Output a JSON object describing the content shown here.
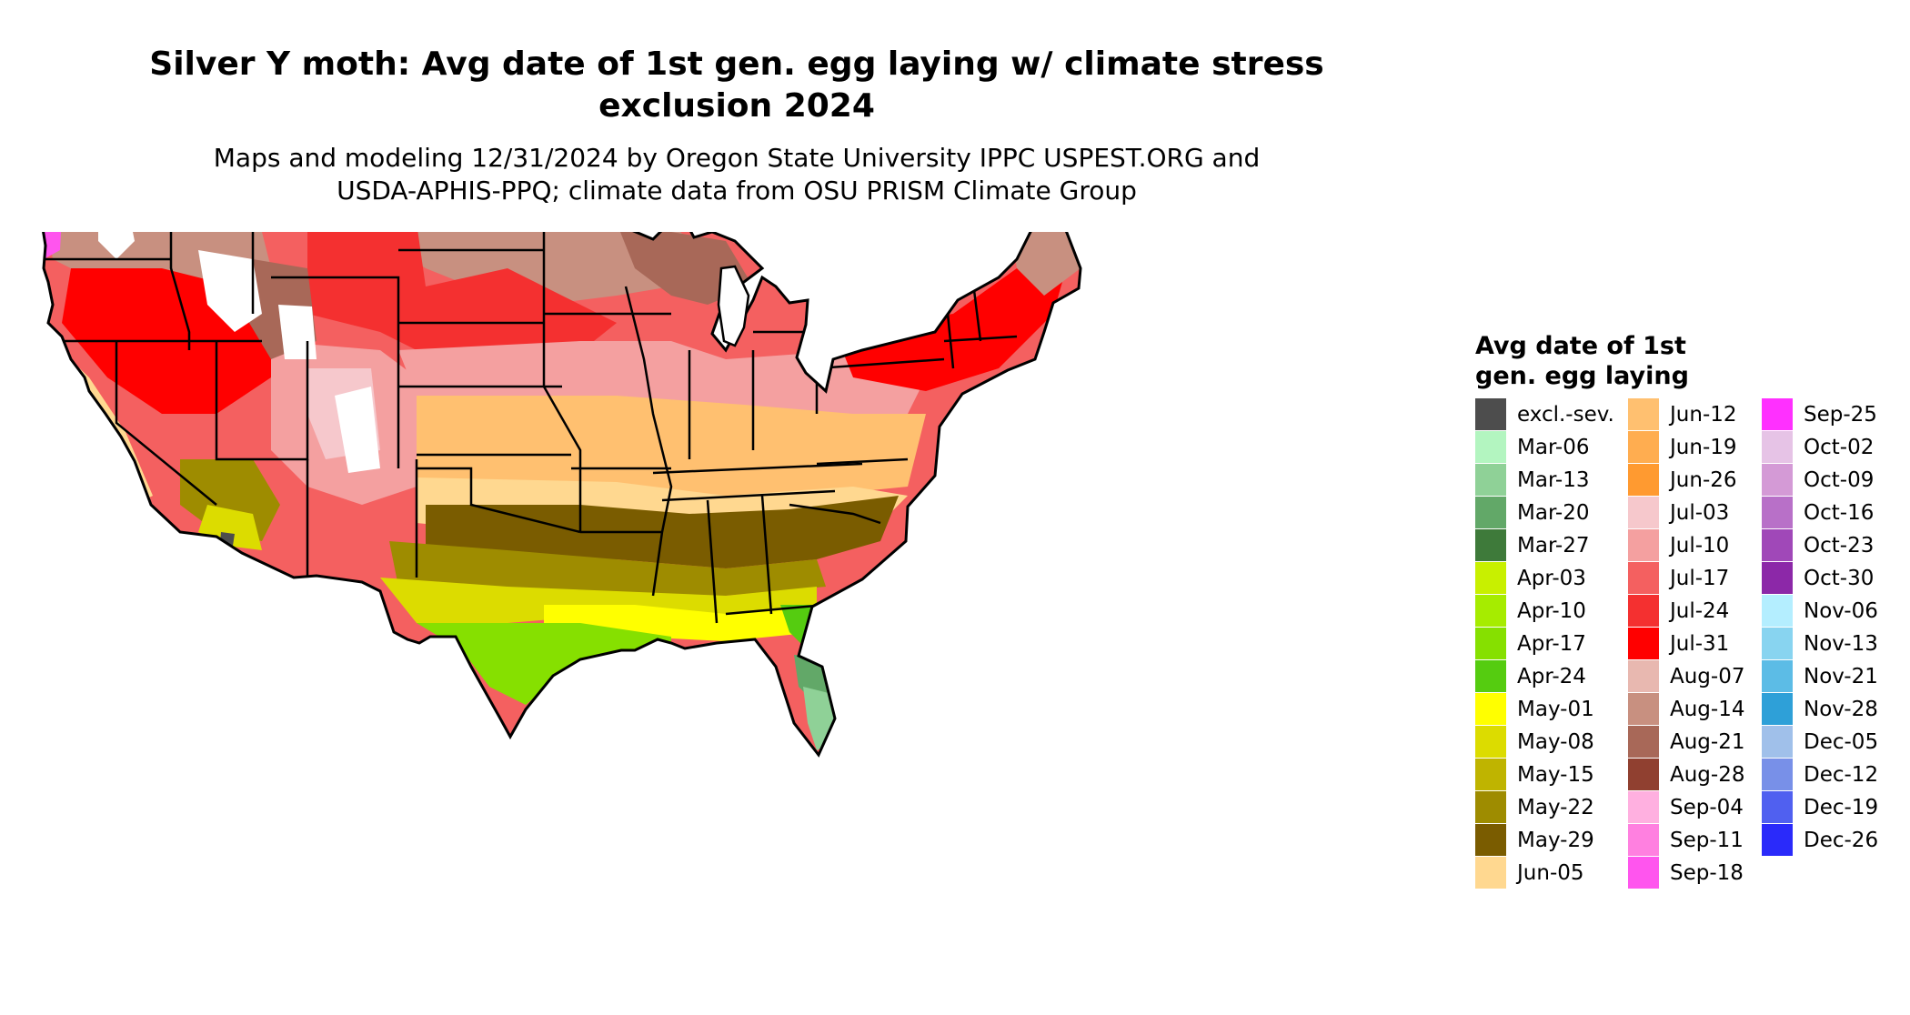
{
  "header": {
    "title_line1": "Silver Y moth: Avg date of 1st gen. egg laying w/ climate stress",
    "title_line2": "exclusion 2024",
    "subtitle_line1": "Maps and modeling 12/31/2024 by Oregon State University IPPC USPEST.ORG and",
    "subtitle_line2": "USDA-APHIS-PPQ; climate data from OSU PRISM Climate Group"
  },
  "legend": {
    "title_line1": "Avg date of 1st",
    "title_line2": "gen. egg laying",
    "columns": [
      [
        {
          "label": "excl.-sev.",
          "color": "#4d4d4d"
        },
        {
          "label": "Mar-06",
          "color": "#b3f5c0"
        },
        {
          "label": "Mar-13",
          "color": "#8fd197"
        },
        {
          "label": "Mar-20",
          "color": "#62a868"
        },
        {
          "label": "Mar-27",
          "color": "#3e7a3a"
        },
        {
          "label": "Apr-03",
          "color": "#c8f000"
        },
        {
          "label": "Apr-10",
          "color": "#a6ec00"
        },
        {
          "label": "Apr-17",
          "color": "#86e000"
        },
        {
          "label": "Apr-24",
          "color": "#55cc10"
        },
        {
          "label": "May-01",
          "color": "#ffff00"
        },
        {
          "label": "May-08",
          "color": "#dcdc00"
        },
        {
          "label": "May-15",
          "color": "#bfb400"
        },
        {
          "label": "May-22",
          "color": "#9e8c00"
        },
        {
          "label": "May-29",
          "color": "#7a5c00"
        },
        {
          "label": "Jun-05",
          "color": "#ffd890"
        }
      ],
      [
        {
          "label": "Jun-12",
          "color": "#ffc070"
        },
        {
          "label": "Jun-19",
          "color": "#ffad50"
        },
        {
          "label": "Jun-26",
          "color": "#ff9a30"
        },
        {
          "label": "Jul-03",
          "color": "#f6c8cc"
        },
        {
          "label": "Jul-10",
          "color": "#f4a0a0"
        },
        {
          "label": "Jul-17",
          "color": "#f46060"
        },
        {
          "label": "Jul-24",
          "color": "#f43030"
        },
        {
          "label": "Jul-31",
          "color": "#ff0000"
        },
        {
          "label": "Aug-07",
          "color": "#e8b8b0"
        },
        {
          "label": "Aug-14",
          "color": "#c89080"
        },
        {
          "label": "Aug-21",
          "color": "#a86858"
        },
        {
          "label": "Aug-28",
          "color": "#904030"
        },
        {
          "label": "Sep-04",
          "color": "#ffb0e0"
        },
        {
          "label": "Sep-11",
          "color": "#ff80e0"
        },
        {
          "label": "Sep-18",
          "color": "#ff55ee"
        }
      ],
      [
        {
          "label": "Sep-25",
          "color": "#ff30ff"
        },
        {
          "label": "Oct-02",
          "color": "#e6c3e6"
        },
        {
          "label": "Oct-09",
          "color": "#d49ad6"
        },
        {
          "label": "Oct-16",
          "color": "#b870c8"
        },
        {
          "label": "Oct-23",
          "color": "#a048b8"
        },
        {
          "label": "Oct-30",
          "color": "#8c28a8"
        },
        {
          "label": "Nov-06",
          "color": "#b4eeff"
        },
        {
          "label": "Nov-13",
          "color": "#88d4f0"
        },
        {
          "label": "Nov-21",
          "color": "#5cbce6"
        },
        {
          "label": "Nov-28",
          "color": "#2ea0d8"
        },
        {
          "label": "Dec-05",
          "color": "#a0c0ea"
        },
        {
          "label": "Dec-12",
          "color": "#7890e8"
        },
        {
          "label": "Dec-19",
          "color": "#5060f0"
        },
        {
          "label": "Dec-26",
          "color": "#2a2afa"
        }
      ]
    ]
  },
  "map": {
    "colors": {
      "north_brown": "#c89080",
      "dark_brown": "#a86858",
      "red": "#f43030",
      "bright_red": "#ff0000",
      "pink": "#f4a0a0",
      "light_pink": "#f6c8cc",
      "orange": "#ffc070",
      "light_orange": "#ffd890",
      "olive_dark": "#7a5c00",
      "olive": "#9e8c00",
      "yellow_olive": "#bfb400",
      "yellow": "#dcdc00",
      "bright_yellow": "#ffff00",
      "green": "#86e000",
      "dark_green": "#55cc10",
      "sea_green": "#62a868",
      "mint": "#8fd197",
      "magenta": "#ff55ee",
      "white": "#ffffff",
      "excluded": "#4d4d4d"
    }
  }
}
